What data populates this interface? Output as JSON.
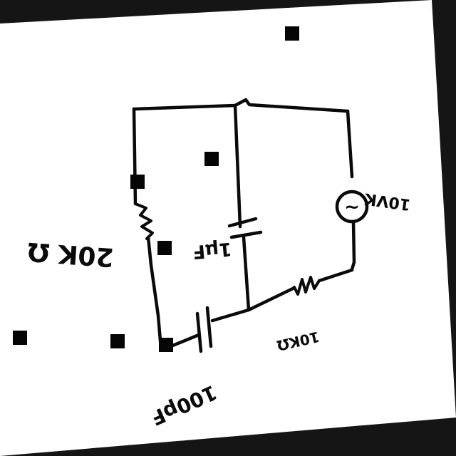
{
  "diagram": {
    "components": {
      "left_resistor": {
        "label": "20K Ω"
      },
      "capacitor_vertical": {
        "label": "1µF"
      },
      "capacitor_bottom": {
        "label": "100pF"
      },
      "resistor_bottom": {
        "label": "10KΩ"
      },
      "voltage_source": {
        "label": "10VK",
        "symbol": "~"
      }
    }
  },
  "colors": {
    "paper": "#ffffff",
    "ink": "#0a0a0a",
    "background": "#151515"
  }
}
